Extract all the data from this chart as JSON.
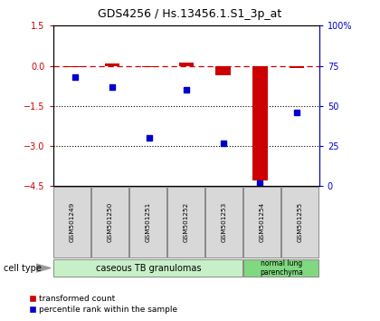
{
  "title": "GDS4256 / Hs.13456.1.S1_3p_at",
  "samples": [
    "GSM501249",
    "GSM501250",
    "GSM501251",
    "GSM501252",
    "GSM501253",
    "GSM501254",
    "GSM501255"
  ],
  "red_values": [
    -0.05,
    0.1,
    -0.04,
    0.12,
    -0.35,
    -4.3,
    -0.07
  ],
  "blue_values": [
    68,
    62,
    30,
    60,
    27,
    2,
    46
  ],
  "ylim_left": [
    -4.5,
    1.5
  ],
  "ylim_right": [
    0,
    100
  ],
  "yticks_left": [
    1.5,
    0,
    -1.5,
    -3,
    -4.5
  ],
  "yticks_right": [
    100,
    75,
    50,
    25,
    0
  ],
  "ytick_labels_right": [
    "100%",
    "75",
    "50",
    "25",
    "0"
  ],
  "hlines": [
    -1.5,
    -3.0
  ],
  "dashed_hline": 0.0,
  "cell_type_label": "cell type",
  "group1_label": "caseous TB granulomas",
  "group2_label": "normal lung\nparenchyma",
  "legend_red": "transformed count",
  "legend_blue": "percentile rank within the sample",
  "bg_color_ticks": "#d8d8d8",
  "group1_color": "#c8f0c8",
  "group2_color": "#80d880",
  "red_color": "#cc0000",
  "blue_color": "#0000cc",
  "bar_width": 0.4
}
